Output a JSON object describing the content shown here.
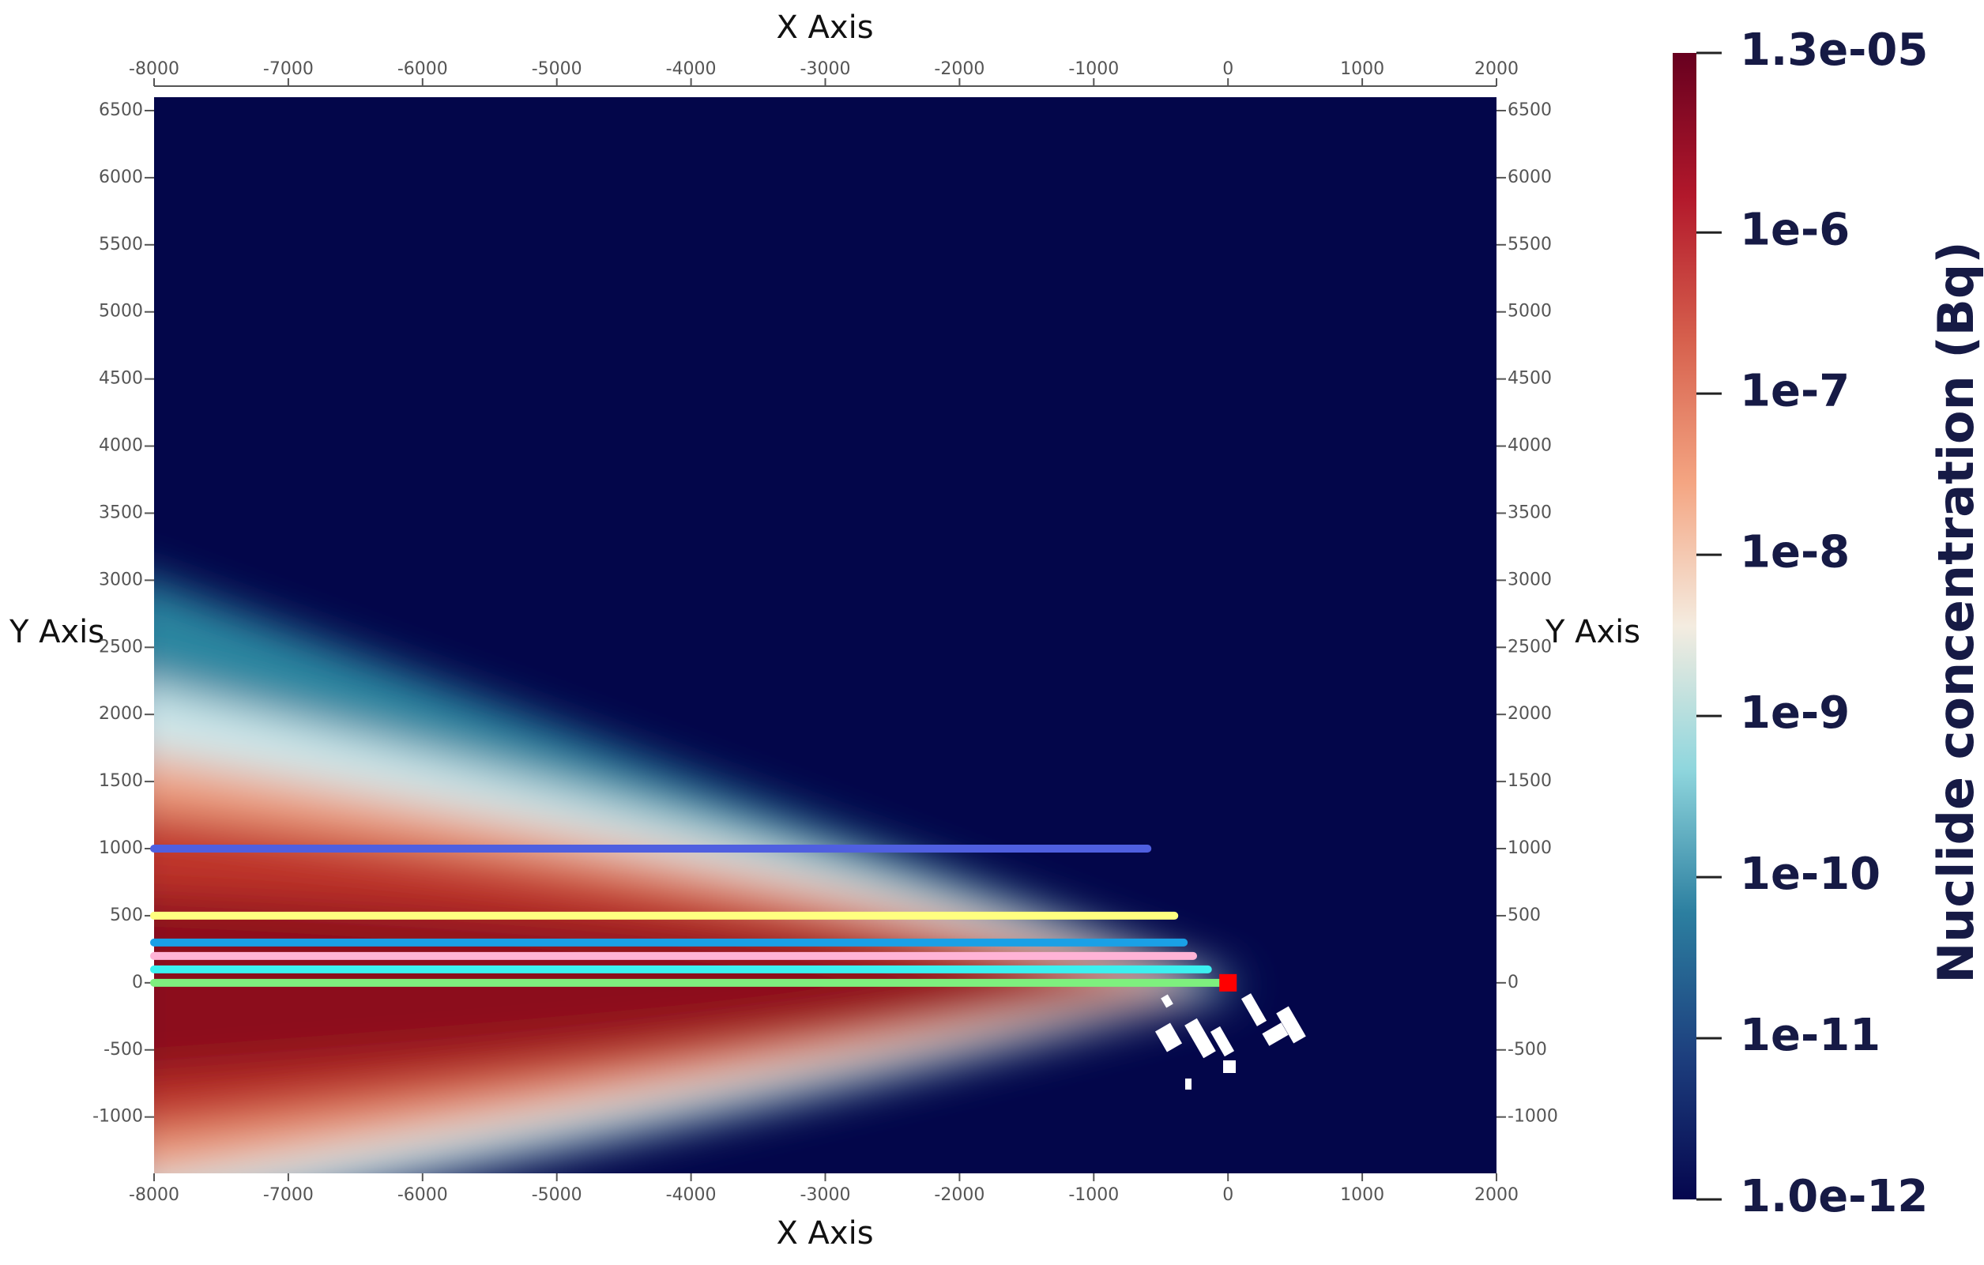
{
  "chart_data": {
    "type": "plume",
    "xlabel": "X Axis",
    "ylabel": "Y Axis",
    "xlim": [
      -8000,
      2000
    ],
    "ylim": [
      -1420,
      6600
    ],
    "xticks": [
      -8000,
      -7000,
      -6000,
      -5000,
      -4000,
      -3000,
      -2000,
      -1000,
      0,
      1000,
      2000
    ],
    "yticks": [
      -1000,
      -500,
      0,
      500,
      1000,
      1500,
      2000,
      2500,
      3000,
      3500,
      4000,
      4500,
      5000,
      5500,
      6000,
      6500
    ],
    "background": "#03064a",
    "series": [
      {
        "color": "#4f5fe0",
        "x": [
          -8000,
          -600
        ],
        "values": [
          1000,
          1000
        ]
      },
      {
        "color": "#ffff80",
        "x": [
          -8000,
          -400
        ],
        "values": [
          500,
          500
        ]
      },
      {
        "color": "#1aa0e6",
        "x": [
          -8000,
          -330
        ],
        "values": [
          300,
          300
        ]
      },
      {
        "color": "#ffb3d6",
        "x": [
          -8000,
          -260
        ],
        "values": [
          200,
          200
        ]
      },
      {
        "color": "#3cf0f0",
        "x": [
          -8000,
          -150
        ],
        "values": [
          100,
          100
        ]
      },
      {
        "color": "#7ef07e",
        "x": [
          -8000,
          -60
        ],
        "values": [
          0,
          0
        ]
      }
    ],
    "source": {
      "x": 0,
      "y": 0,
      "color": "#ff0000"
    },
    "colorbar": {
      "title": "Nuclide concentration (Bq)",
      "log": true,
      "lim": [
        1e-12,
        1.3e-05
      ],
      "ticks": [
        {
          "value": 1.3e-05,
          "label": "1.3e-05"
        },
        {
          "value": 1e-06,
          "label": "1e-6"
        },
        {
          "value": 1e-07,
          "label": "1e-7"
        },
        {
          "value": 1e-08,
          "label": "1e-8"
        },
        {
          "value": 1e-09,
          "label": "1e-9"
        },
        {
          "value": 1e-10,
          "label": "1e-10"
        },
        {
          "value": 1e-11,
          "label": "1e-11"
        },
        {
          "value": 1e-12,
          "label": "1.0e-12"
        }
      ],
      "colormap": [
        "#05064e",
        "#1d3f7e",
        "#2c7fa0",
        "#8fd6dd",
        "#f4ece0",
        "#f4a582",
        "#d6604d",
        "#b2182b",
        "#67001f"
      ]
    }
  }
}
